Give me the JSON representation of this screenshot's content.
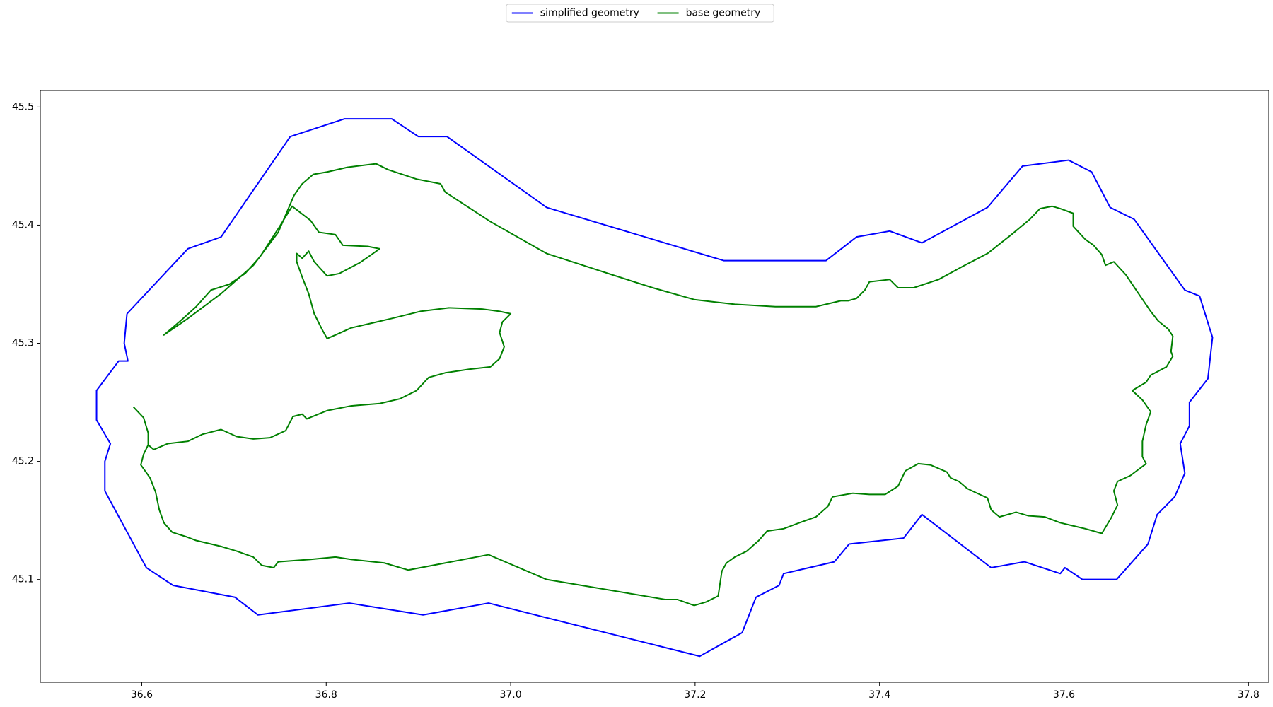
{
  "chart_data": {
    "type": "line",
    "legend": "upper center",
    "xlim": [
      36.49,
      37.822
    ],
    "ylim": [
      45.013,
      45.514
    ],
    "xticks": [
      36.6,
      36.8,
      {
        "value": 37,
        "label": "37.0"
      },
      37.2,
      37.4,
      37.6,
      37.8
    ],
    "yticks": [
      45.1,
      45.2,
      45.3,
      45.4,
      45.5
    ],
    "series": [
      {
        "name": "simplified geometry",
        "color": "#0000ff",
        "x": [
          36.584,
          36.65,
          36.686,
          36.761,
          36.82,
          36.871,
          36.9,
          36.931,
          37.039,
          37.231,
          37.342,
          37.375,
          37.411,
          37.446,
          37.517,
          37.555,
          37.605,
          37.63,
          37.65,
          37.676,
          37.731,
          37.747,
          37.761,
          37.756,
          37.736,
          37.736,
          37.726,
          37.731,
          37.72,
          37.701,
          37.691,
          37.657,
          37.62,
          37.601,
          37.596,
          37.557,
          37.521,
          37.446,
          37.426,
          37.367,
          37.351,
          37.296,
          37.291,
          37.266,
          37.251,
          37.205,
          36.976,
          36.905,
          36.825,
          36.726,
          36.701,
          36.634,
          36.605,
          36.56,
          36.56,
          36.566,
          36.551,
          36.551,
          36.575,
          36.585,
          36.581,
          36.584
        ],
        "values": [
          45.325,
          45.38,
          45.39,
          45.475,
          45.49,
          45.49,
          45.475,
          45.475,
          45.415,
          45.37,
          45.37,
          45.39,
          45.395,
          45.385,
          45.415,
          45.45,
          45.455,
          45.445,
          45.415,
          45.405,
          45.345,
          45.34,
          45.305,
          45.27,
          45.25,
          45.23,
          45.215,
          45.19,
          45.17,
          45.155,
          45.13,
          45.1,
          45.1,
          45.11,
          45.105,
          45.115,
          45.11,
          45.155,
          45.135,
          45.13,
          45.115,
          45.105,
          45.095,
          45.085,
          45.055,
          45.035,
          45.08,
          45.07,
          45.08,
          45.07,
          45.085,
          45.095,
          45.11,
          45.175,
          45.2,
          45.215,
          45.235,
          45.26,
          45.285,
          45.285,
          45.3,
          45.325
        ]
      },
      {
        "name": "base geometry",
        "color": "#008000",
        "x": [
          36.591,
          36.602,
          36.607,
          36.607,
          36.613,
          36.628,
          36.65,
          36.666,
          36.686,
          36.703,
          36.721,
          36.739,
          36.756,
          36.764,
          36.774,
          36.779,
          36.801,
          36.827,
          36.858,
          36.88,
          36.898,
          36.911,
          36.929,
          36.955,
          36.978,
          36.988,
          36.993,
          36.988,
          36.991,
          37.0,
          36.988,
          36.969,
          36.933,
          36.902,
          36.871,
          36.849,
          36.827,
          36.81,
          36.801,
          36.796,
          36.787,
          36.781,
          36.774,
          36.768,
          36.768,
          36.774,
          36.781,
          36.787,
          36.801,
          36.814,
          36.836,
          36.849,
          36.858,
          36.845,
          36.818,
          36.81,
          36.792,
          36.783,
          36.763,
          36.748,
          36.728,
          36.712,
          36.695,
          36.675,
          36.659,
          36.642,
          36.624,
          36.65,
          36.686,
          36.721,
          36.748,
          36.765,
          36.774,
          36.786,
          36.801,
          36.823,
          36.854,
          36.867,
          36.898,
          36.924,
          36.929,
          36.978,
          37.039,
          37.11,
          37.154,
          37.199,
          37.243,
          37.287,
          37.331,
          37.358,
          37.366,
          37.375,
          37.384,
          37.389,
          37.411,
          37.42,
          37.437,
          37.464,
          37.49,
          37.517,
          37.543,
          37.563,
          37.574,
          37.587,
          37.596,
          37.61,
          37.61,
          37.623,
          37.632,
          37.641,
          37.645,
          37.654,
          37.667,
          37.68,
          37.694,
          37.702,
          37.713,
          37.718,
          37.716,
          37.718,
          37.711,
          37.694,
          37.689,
          37.674,
          37.685,
          37.694,
          37.689,
          37.685,
          37.685,
          37.689,
          37.672,
          37.658,
          37.654,
          37.658,
          37.651,
          37.641,
          37.623,
          37.596,
          37.579,
          37.561,
          37.548,
          37.53,
          37.521,
          37.517,
          37.503,
          37.495,
          37.486,
          37.477,
          37.473,
          37.455,
          37.442,
          37.428,
          37.42,
          37.406,
          37.389,
          37.371,
          37.349,
          37.344,
          37.331,
          37.313,
          37.296,
          37.278,
          37.269,
          37.256,
          37.243,
          37.234,
          37.229,
          37.225,
          37.212,
          37.199,
          37.181,
          37.168,
          37.039,
          36.976,
          36.889,
          36.863,
          36.827,
          36.81,
          36.783,
          36.748,
          36.743,
          36.73,
          36.721,
          36.703,
          36.686,
          36.659,
          36.649,
          36.633,
          36.624,
          36.619,
          36.615,
          36.609,
          36.599,
          36.602,
          36.607
        ],
        "values": [
          45.246,
          45.237,
          45.224,
          45.214,
          45.21,
          45.215,
          45.217,
          45.223,
          45.227,
          45.221,
          45.219,
          45.22,
          45.226,
          45.238,
          45.24,
          45.236,
          45.243,
          45.247,
          45.249,
          45.253,
          45.26,
          45.271,
          45.275,
          45.278,
          45.28,
          45.287,
          45.297,
          45.309,
          45.318,
          45.325,
          45.327,
          45.329,
          45.33,
          45.327,
          45.321,
          45.317,
          45.313,
          45.307,
          45.304,
          45.311,
          45.325,
          45.342,
          45.356,
          45.369,
          45.376,
          45.372,
          45.378,
          45.369,
          45.357,
          45.359,
          45.368,
          45.375,
          45.38,
          45.382,
          45.383,
          45.392,
          45.394,
          45.404,
          45.416,
          45.397,
          45.373,
          45.359,
          45.35,
          45.345,
          45.331,
          45.319,
          45.307,
          45.321,
          45.342,
          45.366,
          45.394,
          45.425,
          45.435,
          45.443,
          45.445,
          45.449,
          45.452,
          45.447,
          45.439,
          45.435,
          45.428,
          45.403,
          45.376,
          45.358,
          45.347,
          45.337,
          45.333,
          45.331,
          45.331,
          45.336,
          45.336,
          45.338,
          45.345,
          45.352,
          45.354,
          45.347,
          45.347,
          45.354,
          45.365,
          45.376,
          45.392,
          45.405,
          45.414,
          45.416,
          45.414,
          45.41,
          45.399,
          45.388,
          45.383,
          45.375,
          45.366,
          45.369,
          45.358,
          45.343,
          45.327,
          45.319,
          45.312,
          45.306,
          45.293,
          45.289,
          45.28,
          45.273,
          45.267,
          45.26,
          45.252,
          45.242,
          45.231,
          45.217,
          45.204,
          45.198,
          45.188,
          45.183,
          45.175,
          45.163,
          45.152,
          45.139,
          45.143,
          45.148,
          45.153,
          45.154,
          45.157,
          45.153,
          45.159,
          45.169,
          45.174,
          45.177,
          45.183,
          45.186,
          45.191,
          45.197,
          45.198,
          45.192,
          45.179,
          45.172,
          45.172,
          45.173,
          45.17,
          45.162,
          45.153,
          45.148,
          45.143,
          45.141,
          45.133,
          45.124,
          45.119,
          45.114,
          45.107,
          45.086,
          45.081,
          45.078,
          45.083,
          45.083,
          45.1,
          45.121,
          45.108,
          45.114,
          45.117,
          45.119,
          45.117,
          45.115,
          45.11,
          45.112,
          45.119,
          45.124,
          45.128,
          45.133,
          45.136,
          45.14,
          45.148,
          45.159,
          45.174,
          45.186,
          45.197,
          45.206,
          45.214
        ]
      }
    ]
  }
}
